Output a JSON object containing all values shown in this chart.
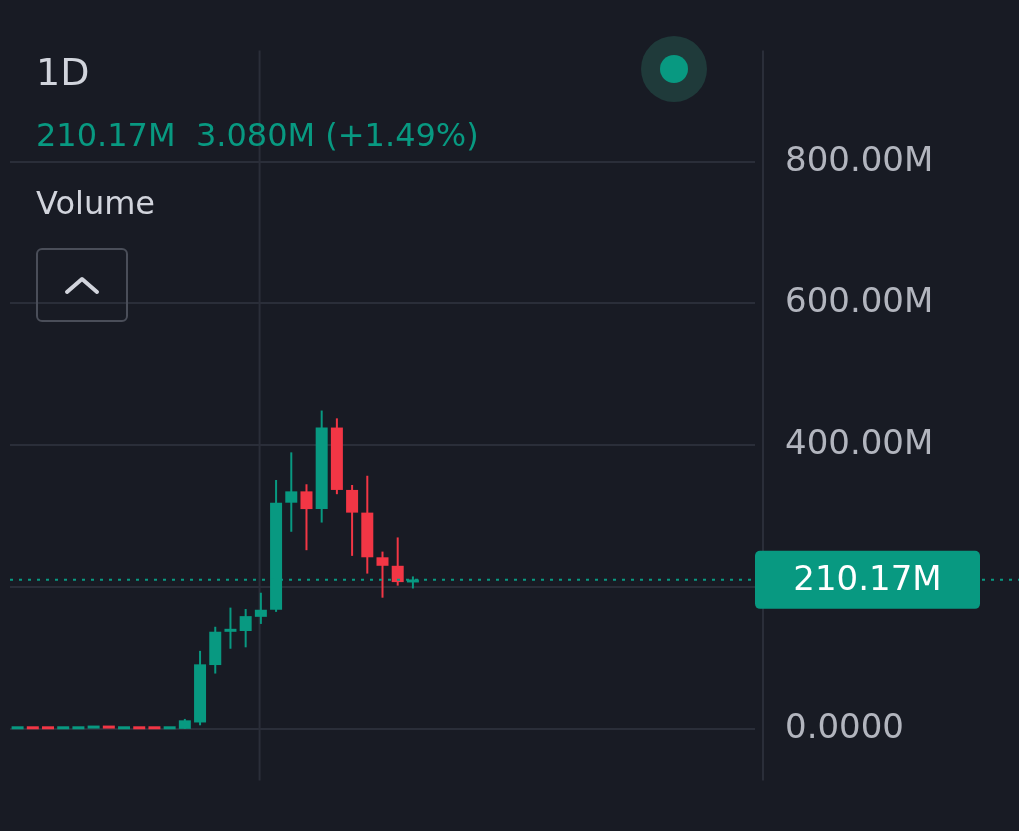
{
  "chart_data": {
    "type": "candlestick",
    "title": "1D",
    "annotations": [
      "210.17M  3.080M (+1.49%)",
      "Volume"
    ],
    "categories": [
      null,
      null,
      null,
      null,
      null,
      null,
      null,
      null,
      null,
      null,
      null,
      null,
      null,
      null,
      null,
      null,
      null,
      null,
      null,
      null,
      null,
      null,
      null,
      null,
      null,
      null,
      null,
      null,
      null,
      null,
      null,
      null,
      null,
      null,
      null,
      null,
      null,
      null,
      null,
      null,
      null,
      null,
      null,
      null,
      null,
      null,
      null,
      null,
      null
    ],
    "ohlc": [
      [
        1,
        2,
        1,
        2
      ],
      [
        2,
        2,
        1,
        1
      ],
      [
        2,
        2,
        1,
        1
      ],
      [
        1,
        2,
        1,
        2
      ],
      [
        1,
        2,
        1,
        2
      ],
      [
        2,
        3,
        2,
        3
      ],
      [
        3,
        3,
        2,
        2
      ],
      [
        1,
        2,
        1,
        2
      ],
      [
        2,
        2,
        1,
        1
      ],
      [
        2,
        2,
        1,
        1
      ],
      [
        1,
        2,
        1,
        2
      ],
      [
        0,
        14,
        0,
        12
      ],
      [
        9,
        110,
        5,
        91
      ],
      [
        90,
        144,
        78,
        137
      ],
      [
        137,
        171,
        113,
        141
      ],
      [
        138,
        169,
        115,
        159
      ],
      [
        158,
        192,
        148,
        168
      ],
      [
        168,
        351,
        165,
        319
      ],
      [
        319,
        390,
        278,
        335
      ],
      [
        335,
        345,
        252,
        310
      ],
      [
        310,
        449,
        291,
        425
      ],
      [
        425,
        438,
        331,
        337
      ],
      [
        337,
        344,
        244,
        305
      ],
      [
        305,
        357,
        219,
        242
      ],
      [
        242,
        250,
        185,
        230
      ],
      [
        230,
        270,
        202,
        207
      ],
      [
        207,
        215,
        198,
        210.17
      ],
      null,
      null,
      null,
      null,
      null,
      null,
      null,
      null,
      null,
      null,
      null,
      null,
      null,
      null,
      null,
      null,
      null,
      null,
      null,
      null,
      null,
      null
    ],
    "colors": [
      "#089981",
      "#f23645",
      "#f23645",
      "#089981",
      "#089981",
      "#089981",
      "#f23645",
      "#089981",
      "#f23645",
      "#f23645",
      "#089981",
      "#089981",
      "#089981",
      "#089981",
      "#089981",
      "#089981",
      "#089981",
      "#089981",
      "#089981",
      "#f23645",
      "#089981",
      "#f23645",
      "#f23645",
      "#f23645",
      "#f23645",
      "#f23645",
      "#089981",
      null,
      null,
      null,
      null,
      null,
      null,
      null,
      null,
      null,
      null,
      null,
      null,
      null,
      null,
      null,
      null,
      null,
      null,
      null,
      null,
      null,
      null
    ],
    "ylim": [
      -73,
      957
    ],
    "yticks": [
      {
        "value": 0,
        "label": "0.0000"
      },
      {
        "value": 200,
        "label": null
      },
      {
        "value": 400,
        "label": "400.00M"
      },
      {
        "value": 600,
        "label": "600.00M"
      },
      {
        "value": 800,
        "label": "800.00M"
      }
    ],
    "grid": "y",
    "ref_lines": [
      {
        "axis": "y",
        "value": 210.17,
        "label": "210.17M",
        "color": "#089981",
        "line_style": "dotted"
      }
    ]
  }
}
